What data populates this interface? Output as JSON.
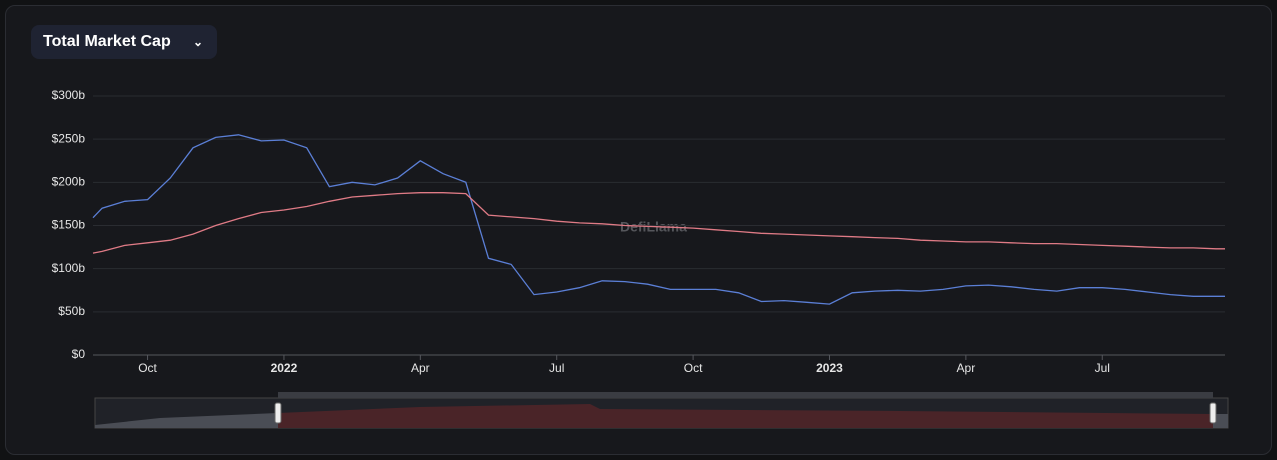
{
  "header": {
    "selector": "Total Market Cap"
  },
  "watermark": "DefiLlama",
  "chart_data": {
    "type": "line",
    "x": [
      -0.2,
      0,
      0.5,
      1,
      1.5,
      2,
      2.5,
      3,
      3.5,
      4,
      4.5,
      5,
      5.5,
      6,
      6.5,
      7,
      7.5,
      8,
      8.5,
      9,
      9.5,
      10,
      10.5,
      11,
      11.5,
      12,
      12.5,
      13,
      13.5,
      14,
      14.5,
      15,
      15.5,
      16,
      16.5,
      17,
      17.5,
      18,
      18.5,
      19,
      19.5,
      20,
      20.5,
      21,
      21.5,
      22,
      22.5,
      23,
      23.5,
      24,
      24.5,
      24.7
    ],
    "xlim": [
      -0.2,
      24.7
    ],
    "xticks": [
      {
        "value": 1,
        "label": "Oct"
      },
      {
        "value": 4,
        "label": "2022"
      },
      {
        "value": 7,
        "label": "Apr"
      },
      {
        "value": 10,
        "label": "Jul"
      },
      {
        "value": 13,
        "label": "Oct"
      },
      {
        "value": 16,
        "label": "2023"
      },
      {
        "value": 19,
        "label": "Apr"
      },
      {
        "value": 22,
        "label": "Jul"
      }
    ],
    "ylim": [
      0,
      300
    ],
    "yticks": [
      {
        "value": 0,
        "label": "$0"
      },
      {
        "value": 50,
        "label": "$50b"
      },
      {
        "value": 100,
        "label": "$100b"
      },
      {
        "value": 150,
        "label": "$150b"
      },
      {
        "value": 200,
        "label": "$200b"
      },
      {
        "value": 250,
        "label": "$250b"
      },
      {
        "value": 300,
        "label": "$300b"
      }
    ],
    "grid": true,
    "series": [
      {
        "color": "#5b7fd6",
        "values": [
          159,
          170,
          178,
          180,
          205,
          240,
          252,
          255,
          248,
          249,
          240,
          195,
          200,
          197,
          205,
          225,
          210,
          200,
          112,
          105,
          70,
          73,
          78,
          86,
          85,
          82,
          76,
          76,
          76,
          72,
          62,
          63,
          61,
          59,
          72,
          74,
          75,
          74,
          76,
          80,
          81,
          79,
          76,
          74,
          78,
          78,
          76,
          73,
          70,
          68,
          68,
          68
        ]
      },
      {
        "color": "#e07b86",
        "values": [
          118,
          120,
          127,
          130,
          133,
          140,
          150,
          158,
          165,
          168,
          172,
          178,
          183,
          185,
          187,
          188,
          188,
          187,
          162,
          160,
          158,
          155,
          153,
          152,
          150,
          149,
          148,
          147,
          145,
          143,
          141,
          140,
          139,
          138,
          137,
          136,
          135,
          133,
          132,
          131,
          131,
          130,
          129,
          129,
          128,
          127,
          126,
          125,
          124,
          124,
          123,
          123
        ]
      }
    ]
  }
}
